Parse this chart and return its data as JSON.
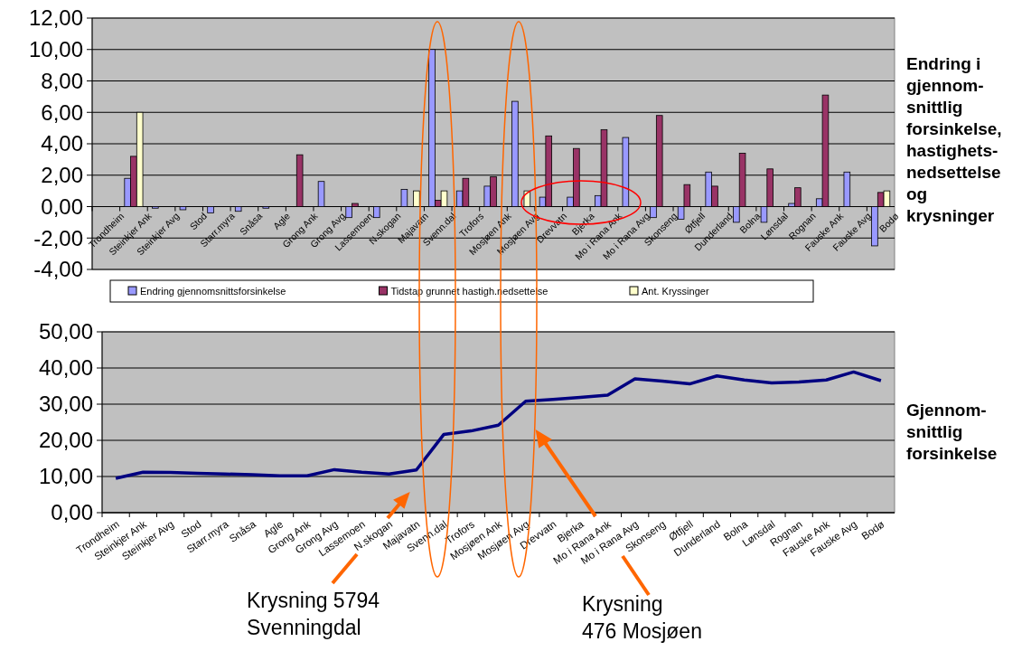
{
  "chart_data": [
    {
      "type": "bar",
      "ylabel": "Endring i\ngjennom-\nsnittlig\nforsinkelse,\nhastighets-\nnedsettelse\nog\nkrysninger",
      "categories": [
        "Trondheim",
        "Steinkjer Ank",
        "Steinkjer Avg",
        "Stod",
        "Starr.myra",
        "Snåsa",
        "Agle",
        "Grong Ank",
        "Grong Avg",
        "Lassemoen",
        "N.skogan",
        "Majavatn",
        "Svenn.dal",
        "Trofors",
        "Mosjøen Ank",
        "Mosjøen Avg",
        "Drevvatn",
        "Bjerka",
        "Mo i Rana Ank",
        "Mo i Rana Avg",
        "Skonseng",
        "Øtfjell",
        "Dunderland",
        "Bolna",
        "Lønsdal",
        "Rognan",
        "Fauske Ank",
        "Fauske Avg",
        "Bodø"
      ],
      "series": [
        {
          "name": "Endring gjennomsnittsforsinkelse",
          "color": "#9999ff",
          "values": [
            null,
            1.8,
            -0.1,
            -0.2,
            -0.4,
            -0.3,
            -0.1,
            null,
            1.6,
            -0.7,
            -0.7,
            1.1,
            10.0,
            1.0,
            1.3,
            6.7,
            0.6,
            0.6,
            0.7,
            4.4,
            -0.7,
            -0.8,
            2.2,
            -1.0,
            -1.0,
            0.2,
            0.5,
            2.2,
            -2.5
          ]
        },
        {
          "name": "Tidstap grunnet hastigh.nedsettelse",
          "color": "#993366",
          "values": [
            null,
            3.2,
            null,
            null,
            null,
            null,
            null,
            3.3,
            null,
            0.2,
            null,
            null,
            0.4,
            1.8,
            1.9,
            null,
            4.5,
            3.7,
            4.9,
            null,
            5.8,
            1.4,
            1.3,
            3.4,
            2.4,
            1.2,
            7.1,
            null,
            0.9
          ]
        },
        {
          "name": "Ant. Kryssinger",
          "color": "#ffffcc",
          "values": [
            null,
            6.0,
            null,
            null,
            null,
            null,
            null,
            null,
            null,
            null,
            null,
            1.0,
            1.0,
            null,
            null,
            1.0,
            null,
            null,
            null,
            null,
            null,
            null,
            null,
            null,
            null,
            null,
            null,
            null,
            1.0
          ]
        }
      ],
      "ylim": [
        -4,
        12
      ],
      "yticks": [
        {
          "value": -4,
          "label": "-4,00"
        },
        {
          "value": -2,
          "label": "-2,00"
        },
        {
          "value": 0,
          "label": "0,00"
        },
        {
          "value": 2,
          "label": "2,00"
        },
        {
          "value": 4,
          "label": "4,00"
        },
        {
          "value": 6,
          "label": "6,00"
        },
        {
          "value": 8,
          "label": "8,00"
        },
        {
          "value": 10,
          "label": "10,00"
        },
        {
          "value": 12,
          "label": "12,00"
        }
      ],
      "grid": "y",
      "legend": "bottom"
    },
    {
      "type": "line",
      "ylabel": "Gjennom-\nsnittlig\nforsinkelse",
      "categories": [
        "Trondheim",
        "Steinkjer Ank",
        "Steinkjer Avg",
        "Stod",
        "Starr.myra",
        "Snåsa",
        "Agle",
        "Grong Ank",
        "Grong Avg",
        "Lassemoen",
        "N.skogan",
        "Majavatn",
        "Svenn.dal",
        "Trofors",
        "Mosjøen Ank",
        "Mosjøen Avg",
        "Drevvatn",
        "Bjerka",
        "Mo i Rana Ank",
        "Mo i Rana Avg",
        "Skonseng",
        "Øtfjell",
        "Dunderland",
        "Bolna",
        "Lønsdal",
        "Rognan",
        "Fauske Ank",
        "Fauske Avg",
        "Bodø"
      ],
      "series": [
        {
          "color": "#000080",
          "values": [
            9.5,
            11.2,
            11.1,
            10.9,
            10.7,
            10.5,
            10.2,
            10.2,
            11.9,
            11.2,
            10.7,
            11.8,
            21.6,
            22.6,
            24.2,
            30.8,
            31.3,
            31.9,
            32.5,
            37.0,
            36.4,
            35.6,
            37.8,
            36.7,
            35.9,
            36.1,
            36.7,
            38.9,
            36.5
          ]
        }
      ],
      "ylim": [
        0,
        50
      ],
      "yticks": [
        {
          "value": 0,
          "label": "0,00"
        },
        {
          "value": 10,
          "label": "10,00"
        },
        {
          "value": 20,
          "label": "20,00"
        },
        {
          "value": 30,
          "label": "30,00"
        },
        {
          "value": 40,
          "label": "40,00"
        },
        {
          "value": 50,
          "label": "50,00"
        }
      ],
      "grid": "y",
      "marker": "none",
      "line_style": "solid",
      "annotations": [
        "Krysning 5794\nSvenningdal",
        "Krysning\n476 Mosjøen"
      ]
    }
  ]
}
